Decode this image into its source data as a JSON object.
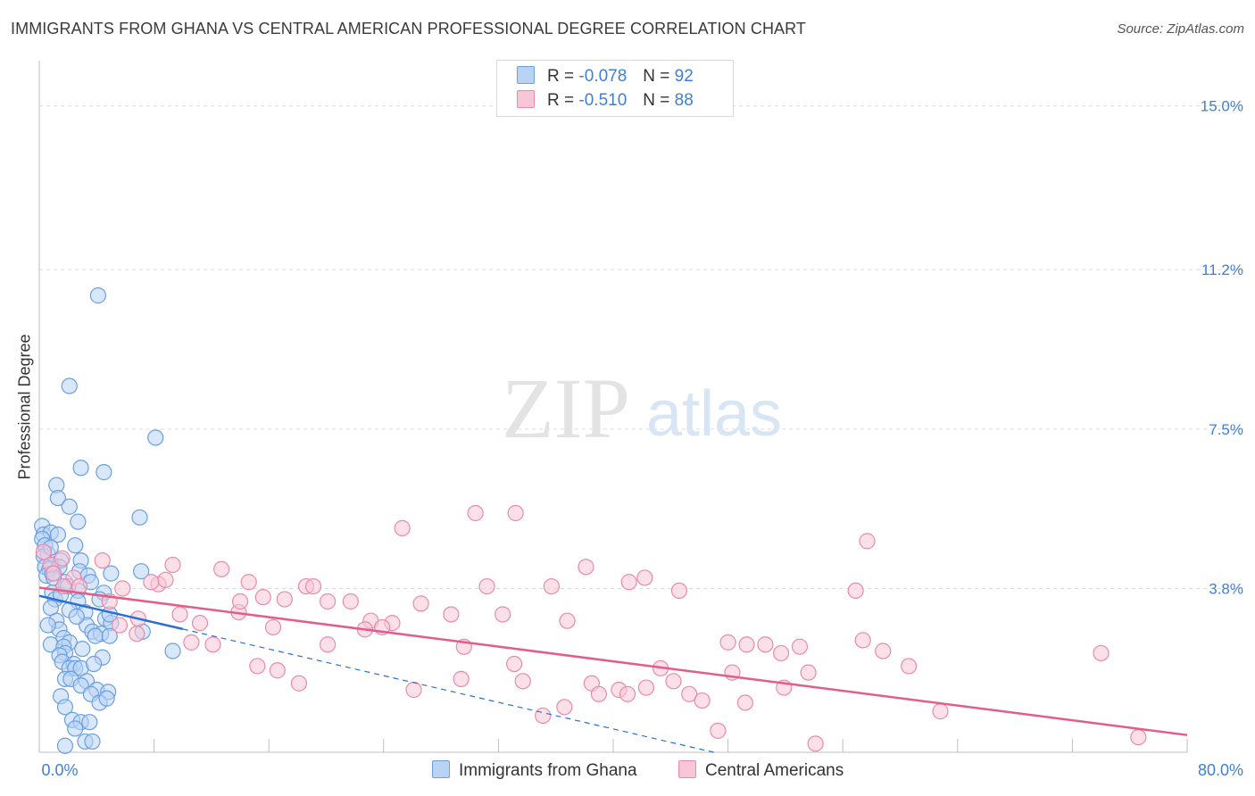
{
  "title": "IMMIGRANTS FROM GHANA VS CENTRAL AMERICAN PROFESSIONAL DEGREE CORRELATION CHART",
  "source": "Source: ZipAtlas.com",
  "watermark": {
    "zip": "ZIP",
    "atlas": "atlas"
  },
  "legend_top": [
    {
      "r_label": "R =",
      "r_value": "-0.078",
      "n_label": "N =",
      "n_value": "92"
    },
    {
      "r_label": "R =",
      "r_value": "-0.510",
      "n_label": "N =",
      "n_value": "88"
    }
  ],
  "colors": {
    "blue_fill": "#b9d3f5",
    "blue_stroke": "#6a9fe0",
    "blue_line": "#2a6fd6",
    "pink_fill": "#f8c6d6",
    "pink_stroke": "#e98aab",
    "pink_line": "#e35d8b",
    "accent_text": "#3f7fd6"
  },
  "chart_data": {
    "type": "scatter",
    "title": "IMMIGRANTS FROM GHANA VS CENTRAL AMERICAN PROFESSIONAL DEGREE CORRELATION CHART",
    "xlabel": "",
    "ylabel": "Professional Degree",
    "xlim": [
      0,
      80
    ],
    "ylim": [
      0,
      15.8
    ],
    "x_tick_labels": [
      "0.0%",
      "80.0%"
    ],
    "y_ticks": [
      3.8,
      7.5,
      11.2,
      15.0
    ],
    "y_tick_labels": [
      "3.8%",
      "7.5%",
      "11.2%",
      "15.0%"
    ],
    "grid": true,
    "legend_position": "top-center",
    "series": [
      {
        "name": "Immigrants from Ghana",
        "color": "blue",
        "r": -0.078,
        "n": 92,
        "trend": {
          "x": [
            0,
            10
          ],
          "y": [
            3.63,
            2.86
          ]
        },
        "trend_extension": {
          "x": [
            10,
            47
          ],
          "y": [
            2.86,
            0.0
          ]
        },
        "points": [
          [
            4.1,
            10.6
          ],
          [
            2.1,
            8.5
          ],
          [
            8.1,
            7.3
          ],
          [
            2.9,
            6.6
          ],
          [
            4.5,
            6.5
          ],
          [
            1.2,
            6.2
          ],
          [
            1.3,
            5.9
          ],
          [
            2.1,
            5.7
          ],
          [
            2.7,
            5.35
          ],
          [
            7.0,
            5.45
          ],
          [
            0.2,
            5.25
          ],
          [
            0.3,
            5.05
          ],
          [
            0.8,
            5.1
          ],
          [
            1.3,
            5.05
          ],
          [
            0.2,
            4.95
          ],
          [
            0.4,
            4.8
          ],
          [
            0.6,
            4.6
          ],
          [
            2.5,
            4.8
          ],
          [
            0.3,
            4.55
          ],
          [
            1.0,
            4.35
          ],
          [
            1.5,
            4.45
          ],
          [
            2.9,
            4.45
          ],
          [
            0.4,
            4.3
          ],
          [
            0.7,
            4.25
          ],
          [
            1.4,
            4.3
          ],
          [
            0.5,
            4.1
          ],
          [
            0.9,
            4.15
          ],
          [
            2.8,
            4.2
          ],
          [
            3.4,
            4.1
          ],
          [
            5.0,
            4.15
          ],
          [
            7.1,
            4.2
          ],
          [
            1.8,
            3.95
          ],
          [
            3.6,
            3.95
          ],
          [
            0.9,
            3.7
          ],
          [
            2.7,
            3.75
          ],
          [
            4.5,
            3.7
          ],
          [
            1.1,
            3.55
          ],
          [
            2.7,
            3.5
          ],
          [
            0.8,
            3.35
          ],
          [
            2.1,
            3.3
          ],
          [
            3.2,
            3.25
          ],
          [
            4.6,
            3.1
          ],
          [
            5.0,
            3.0
          ],
          [
            1.2,
            3.05
          ],
          [
            3.3,
            2.95
          ],
          [
            1.4,
            2.85
          ],
          [
            3.7,
            2.8
          ],
          [
            4.3,
            2.75
          ],
          [
            7.2,
            2.8
          ],
          [
            1.7,
            2.65
          ],
          [
            2.1,
            2.55
          ],
          [
            3.9,
            2.7
          ],
          [
            4.9,
            2.7
          ],
          [
            0.8,
            2.5
          ],
          [
            1.7,
            2.45
          ],
          [
            1.8,
            2.3
          ],
          [
            1.4,
            2.25
          ],
          [
            4.4,
            2.2
          ],
          [
            9.3,
            2.35
          ],
          [
            1.6,
            2.1
          ],
          [
            2.4,
            2.05
          ],
          [
            2.1,
            1.95
          ],
          [
            2.5,
            1.95
          ],
          [
            2.9,
            1.95
          ],
          [
            3.8,
            2.05
          ],
          [
            1.8,
            1.7
          ],
          [
            2.2,
            1.7
          ],
          [
            3.3,
            1.65
          ],
          [
            2.9,
            1.55
          ],
          [
            4.0,
            1.45
          ],
          [
            1.5,
            1.3
          ],
          [
            3.6,
            1.35
          ],
          [
            4.8,
            1.4
          ],
          [
            1.8,
            1.05
          ],
          [
            4.2,
            1.15
          ],
          [
            4.7,
            1.25
          ],
          [
            2.3,
            0.75
          ],
          [
            2.9,
            0.7
          ],
          [
            3.5,
            0.7
          ],
          [
            2.5,
            0.55
          ],
          [
            1.8,
            0.15
          ],
          [
            3.2,
            0.25
          ],
          [
            3.7,
            0.25
          ],
          [
            0.8,
            4.75
          ],
          [
            1.5,
            3.65
          ],
          [
            2.0,
            3.85
          ],
          [
            4.2,
            3.55
          ],
          [
            2.6,
            3.15
          ],
          [
            0.6,
            2.95
          ],
          [
            3.0,
            2.4
          ],
          [
            4.9,
            3.2
          ],
          [
            1.0,
            4.05
          ]
        ]
      },
      {
        "name": "Central Americans",
        "color": "pink",
        "r": -0.51,
        "n": 88,
        "trend": {
          "x": [
            0,
            80
          ],
          "y": [
            3.82,
            0.4
          ]
        },
        "points": [
          [
            0.3,
            4.65
          ],
          [
            0.8,
            4.35
          ],
          [
            1.6,
            4.5
          ],
          [
            4.4,
            4.45
          ],
          [
            1.0,
            4.15
          ],
          [
            2.4,
            4.05
          ],
          [
            1.7,
            3.85
          ],
          [
            2.8,
            3.85
          ],
          [
            4.9,
            3.5
          ],
          [
            5.8,
            3.8
          ],
          [
            6.9,
            3.1
          ],
          [
            8.3,
            3.9
          ],
          [
            8.8,
            4.0
          ],
          [
            9.3,
            4.35
          ],
          [
            12.7,
            4.25
          ],
          [
            14.6,
            3.95
          ],
          [
            15.6,
            3.6
          ],
          [
            17.1,
            3.55
          ],
          [
            18.6,
            3.85
          ],
          [
            20.1,
            3.5
          ],
          [
            21.7,
            3.5
          ],
          [
            23.1,
            3.05
          ],
          [
            24.6,
            3.0
          ],
          [
            25.3,
            5.2
          ],
          [
            26.6,
            3.45
          ],
          [
            28.7,
            3.2
          ],
          [
            31.2,
            3.85
          ],
          [
            32.3,
            3.2
          ],
          [
            35.7,
            3.85
          ],
          [
            36.8,
            3.05
          ],
          [
            38.1,
            4.3
          ],
          [
            41.1,
            3.95
          ],
          [
            42.2,
            4.05
          ],
          [
            44.6,
            3.75
          ],
          [
            48.0,
            2.55
          ],
          [
            49.3,
            2.5
          ],
          [
            50.6,
            2.5
          ],
          [
            51.7,
            2.3
          ],
          [
            53.0,
            2.45
          ],
          [
            56.9,
            3.75
          ],
          [
            57.4,
            2.6
          ],
          [
            57.7,
            4.9
          ],
          [
            58.8,
            2.35
          ],
          [
            60.6,
            2.0
          ],
          [
            62.8,
            0.95
          ],
          [
            30.4,
            5.55
          ],
          [
            33.2,
            5.55
          ],
          [
            19.1,
            3.85
          ],
          [
            13.9,
            3.25
          ],
          [
            16.3,
            2.9
          ],
          [
            20.1,
            2.5
          ],
          [
            22.7,
            2.85
          ],
          [
            23.9,
            2.9
          ],
          [
            26.1,
            1.45
          ],
          [
            29.6,
            2.45
          ],
          [
            29.4,
            1.7
          ],
          [
            33.1,
            2.05
          ],
          [
            33.7,
            1.65
          ],
          [
            35.1,
            0.85
          ],
          [
            36.6,
            1.05
          ],
          [
            38.5,
            1.6
          ],
          [
            39.0,
            1.35
          ],
          [
            40.4,
            1.45
          ],
          [
            41.0,
            1.35
          ],
          [
            42.3,
            1.5
          ],
          [
            43.3,
            1.95
          ],
          [
            44.2,
            1.65
          ],
          [
            45.3,
            1.35
          ],
          [
            46.2,
            1.2
          ],
          [
            47.3,
            0.5
          ],
          [
            48.3,
            1.85
          ],
          [
            49.2,
            1.15
          ],
          [
            51.9,
            1.5
          ],
          [
            53.6,
            1.85
          ],
          [
            54.1,
            0.2
          ],
          [
            11.2,
            3.0
          ],
          [
            12.1,
            2.5
          ],
          [
            14.0,
            3.5
          ],
          [
            15.2,
            2.0
          ],
          [
            16.6,
            1.9
          ],
          [
            18.1,
            1.6
          ],
          [
            9.8,
            3.2
          ],
          [
            10.6,
            2.55
          ],
          [
            7.8,
            3.95
          ],
          [
            5.6,
            2.95
          ],
          [
            6.8,
            2.75
          ],
          [
            76.6,
            0.35
          ],
          [
            74.0,
            2.3
          ]
        ]
      }
    ]
  },
  "axes": {
    "ylabel": "Professional Degree",
    "x_min_label": "0.0%",
    "x_max_label": "80.0%",
    "y_tick_labels": [
      "3.8%",
      "7.5%",
      "11.2%",
      "15.0%"
    ]
  },
  "bottom_legend": [
    {
      "label": "Immigrants from Ghana"
    },
    {
      "label": "Central Americans"
    }
  ]
}
